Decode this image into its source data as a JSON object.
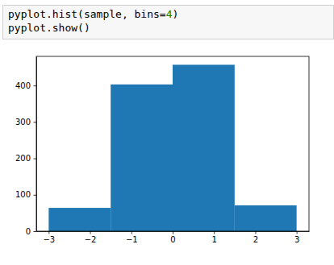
{
  "code": [
    "pyplot.hist(sample, bins=4)",
    "pyplot.show()"
  ],
  "chart_data": {
    "type": "histogram",
    "bins": [
      -3,
      -1.5,
      0,
      1.5,
      3
    ],
    "values": [
      64,
      403,
      457,
      71
    ],
    "color": "#1f77b4",
    "xlim": [
      -3.3,
      3.3
    ],
    "xticks": [
      {
        "value": -3,
        "label": "−3"
      },
      {
        "value": -2,
        "label": "−2"
      },
      {
        "value": -1,
        "label": "−1"
      },
      0,
      1,
      2,
      3
    ],
    "ylim": [
      0,
      480
    ],
    "yticks": [
      0,
      100,
      200,
      300,
      400
    ],
    "grid": false
  }
}
